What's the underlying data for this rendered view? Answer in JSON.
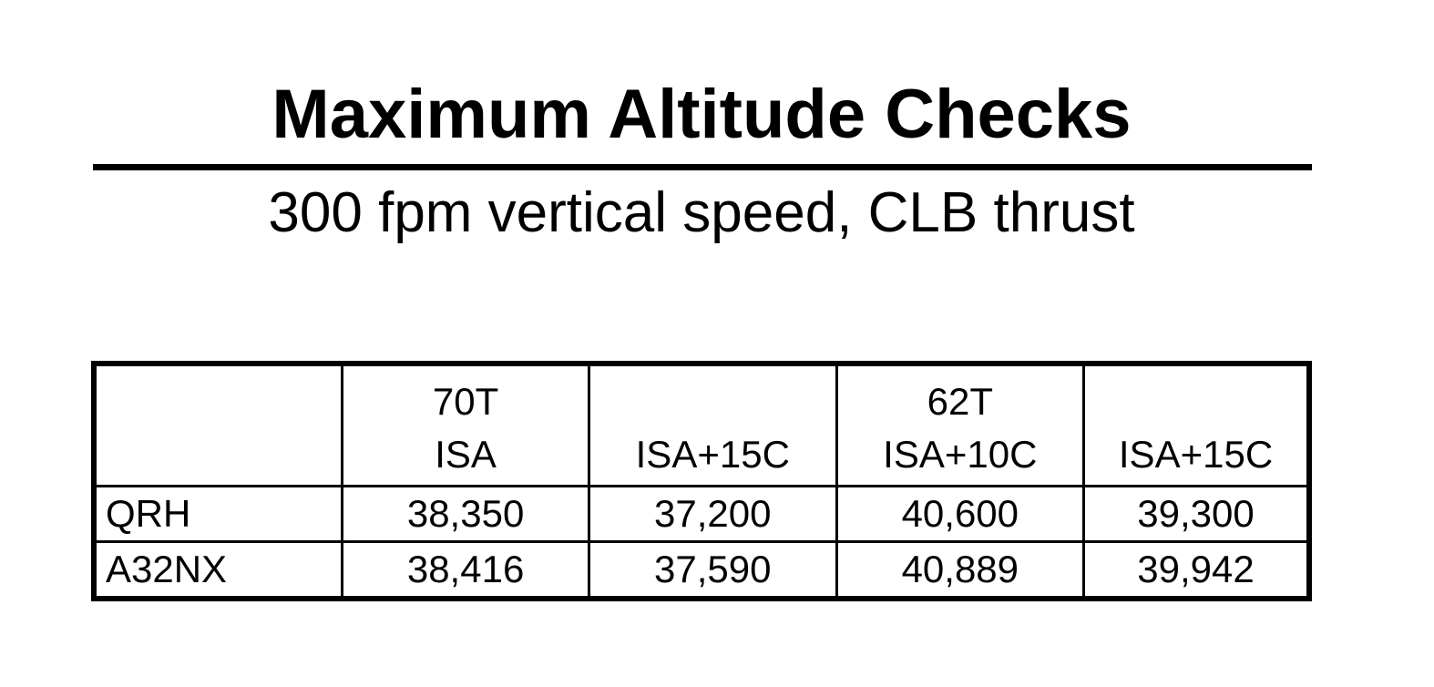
{
  "title": "Maximum Altitude Checks",
  "subtitle": "300 fpm vertical speed, CLB thrust",
  "table": {
    "header": {
      "corner": "",
      "columns": [
        {
          "group": "70T",
          "condition": "ISA"
        },
        {
          "group": "",
          "condition": "ISA+15C"
        },
        {
          "group": "62T",
          "condition": "ISA+10C"
        },
        {
          "group": "",
          "condition": "ISA+15C"
        }
      ]
    },
    "rows": [
      {
        "label": "QRH",
        "values": [
          "38,350",
          "37,200",
          "40,600",
          "39,300"
        ]
      },
      {
        "label": "A32NX",
        "values": [
          "38,416",
          "37,590",
          "40,889",
          "39,942"
        ]
      }
    ]
  }
}
